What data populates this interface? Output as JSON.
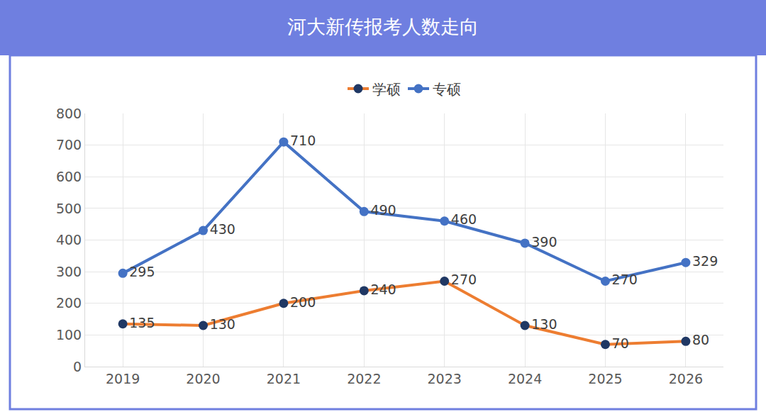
{
  "chart_data": {
    "type": "line",
    "title": "河大新传报考人数走向",
    "categories": [
      "2019",
      "2020",
      "2021",
      "2022",
      "2023",
      "2024",
      "2025",
      "2026"
    ],
    "series": [
      {
        "name": "学硕",
        "color": "#ed7d31",
        "marker": "circle",
        "values": [
          135,
          130,
          200,
          240,
          270,
          130,
          70,
          80
        ]
      },
      {
        "name": "专硕",
        "color": "#4472c4",
        "marker": "circle",
        "values": [
          295,
          430,
          710,
          490,
          460,
          390,
          270,
          329
        ]
      }
    ],
    "ylim": [
      0,
      800
    ],
    "yticks": [
      0,
      100,
      200,
      300,
      400,
      500,
      600,
      700,
      800
    ],
    "grid": true,
    "legend": "top",
    "data_labels": true
  }
}
